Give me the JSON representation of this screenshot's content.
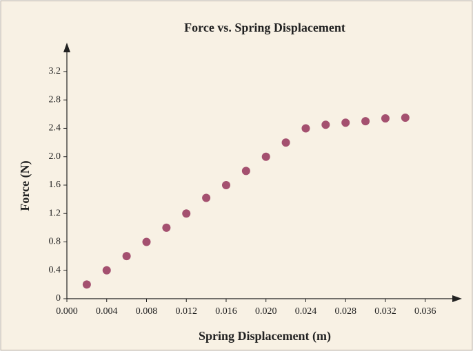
{
  "chart_data": {
    "type": "scatter",
    "title": "Force vs. Spring Displacement",
    "x_label": "Spring Displacement (m)",
    "y_label": "Force (N)",
    "color": "#a4506f",
    "x": [
      0.002,
      0.004,
      0.006,
      0.008,
      0.01,
      0.012,
      0.014,
      0.016,
      0.018,
      0.02,
      0.022,
      0.024,
      0.026,
      0.028,
      0.03,
      0.032,
      0.034
    ],
    "values": [
      0.2,
      0.4,
      0.6,
      0.8,
      1.0,
      1.2,
      1.42,
      1.6,
      1.8,
      2.0,
      2.2,
      2.4,
      2.45,
      2.48,
      2.5,
      2.54,
      2.55
    ],
    "xlim": [
      0,
      0.039
    ],
    "ylim": [
      0,
      3.5
    ],
    "xticks": [
      {
        "value": 0,
        "label": "0.000"
      },
      0.004,
      0.008,
      0.012,
      0.016,
      {
        "value": 0.02,
        "label": "0.020"
      },
      0.024,
      0.028,
      0.032,
      0.036
    ],
    "yticks": [
      0,
      0.4,
      0.8,
      1.2,
      1.6,
      {
        "value": 2.0,
        "label": "2.0"
      },
      2.4,
      2.8,
      3.2
    ]
  }
}
